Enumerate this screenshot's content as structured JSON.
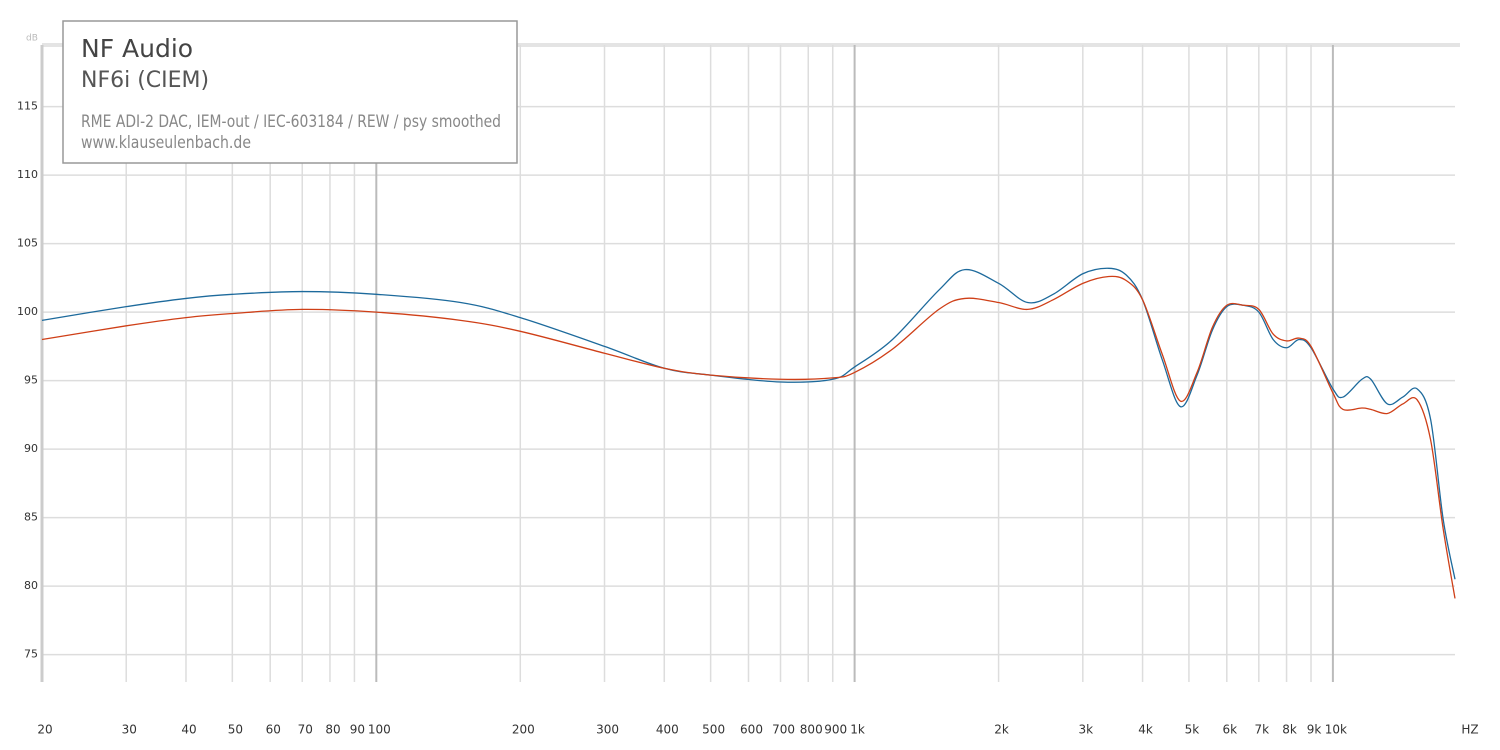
{
  "chart_data": {
    "type": "line",
    "title": "NF Audio",
    "subtitle": "NF6i (CIEM)",
    "annotations": [
      "RME ADI-2 DAC, IEM-out / IEC-603184 / REW / psy smoothed",
      "www.klauseulenbach.de"
    ],
    "ylabel": "dB",
    "xlabel": "HZ",
    "xscale": "log",
    "grid": true,
    "xlim": [
      20,
      18000
    ],
    "ylim": [
      73,
      119.5
    ],
    "yticks": [
      75,
      80,
      85,
      90,
      95,
      100,
      105,
      110,
      115
    ],
    "xticks": [
      20,
      30,
      40,
      50,
      60,
      70,
      80,
      90,
      100,
      200,
      300,
      400,
      500,
      600,
      700,
      800,
      900,
      {
        "value": 1000,
        "label": "1k"
      },
      {
        "value": 2000,
        "label": "2k"
      },
      {
        "value": 3000,
        "label": "3k"
      },
      {
        "value": 4000,
        "label": "4k"
      },
      {
        "value": 5000,
        "label": "5k"
      },
      {
        "value": 6000,
        "label": "6k"
      },
      {
        "value": 7000,
        "label": "7k"
      },
      {
        "value": 8000,
        "label": "8k"
      },
      {
        "value": 9000,
        "label": "9k"
      },
      {
        "value": 10000,
        "label": "10k"
      }
    ],
    "x": [
      20,
      30,
      40,
      50,
      70,
      100,
      150,
      200,
      300,
      400,
      500,
      700,
      900,
      1000,
      1200,
      1500,
      1700,
      2000,
      2300,
      2600,
      3000,
      3400,
      3700,
      4000,
      4400,
      4800,
      5200,
      5600,
      6000,
      6500,
      7000,
      7500,
      8000,
      8500,
      9000,
      10000,
      10500,
      11500,
      12000,
      13000,
      14000,
      15000,
      16000,
      17000,
      18000
    ],
    "series": [
      {
        "color": "#1d6a9c",
        "values": [
          99.4,
          100.4,
          101.0,
          101.3,
          101.5,
          101.3,
          100.7,
          99.6,
          97.5,
          95.9,
          95.4,
          94.9,
          95.1,
          96.0,
          98.0,
          101.6,
          103.1,
          102.1,
          100.7,
          101.3,
          102.8,
          103.2,
          102.7,
          100.9,
          96.5,
          93.1,
          95.4,
          98.7,
          100.4,
          100.5,
          100.0,
          98.0,
          97.4,
          98.0,
          97.4,
          94.4,
          93.8,
          95.1,
          95.1,
          93.3,
          93.8,
          94.4,
          92.2,
          84.9,
          80.5
        ]
      },
      {
        "color": "#cf3f17",
        "values": [
          98.0,
          99.0,
          99.6,
          99.9,
          100.2,
          100.0,
          99.4,
          98.6,
          97.0,
          95.9,
          95.4,
          95.1,
          95.2,
          95.6,
          97.3,
          100.2,
          101.0,
          100.7,
          100.2,
          100.9,
          102.1,
          102.6,
          102.3,
          100.9,
          96.9,
          93.5,
          95.6,
          98.9,
          100.5,
          100.5,
          100.2,
          98.4,
          97.9,
          98.1,
          97.5,
          94.1,
          92.9,
          93.0,
          92.9,
          92.6,
          93.3,
          93.6,
          90.7,
          84.2,
          79.1
        ]
      }
    ]
  }
}
